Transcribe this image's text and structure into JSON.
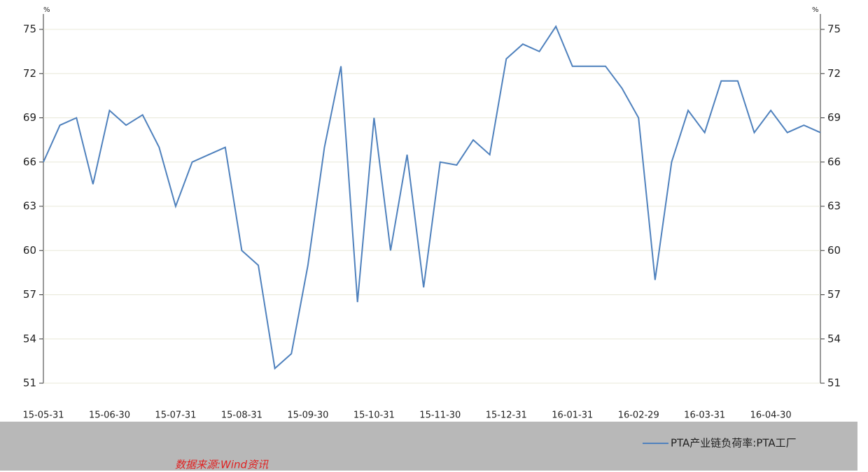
{
  "chart_data": {
    "type": "line",
    "y_unit": "%",
    "source": "数据来源:Wind资讯",
    "categories": [
      "15-05-31",
      null,
      null,
      null,
      "15-06-30",
      null,
      null,
      null,
      "15-07-31",
      null,
      null,
      null,
      "15-08-31",
      null,
      null,
      null,
      "15-09-30",
      null,
      null,
      null,
      "15-10-31",
      null,
      null,
      null,
      "15-11-30",
      null,
      null,
      null,
      "15-12-31",
      null,
      null,
      null,
      "16-01-31",
      null,
      null,
      null,
      "16-02-29",
      null,
      null,
      null,
      "16-03-31",
      null,
      null,
      null,
      "16-04-30",
      null,
      null,
      null
    ],
    "series": [
      {
        "name": "PTA产业链负荷率:PTA工厂",
        "color": "#4f81bd",
        "values": [
          66,
          68.5,
          69,
          64.5,
          69.5,
          68.5,
          69.2,
          67,
          63,
          66,
          66.5,
          67,
          60,
          59,
          52,
          53,
          59,
          67,
          72.5,
          56.5,
          69,
          60,
          66.5,
          57.5,
          66,
          65.8,
          67.5,
          66.5,
          73,
          74,
          73.5,
          75.2,
          72.5,
          72.5,
          72.5,
          71,
          69,
          58,
          66,
          69.5,
          68,
          71.5,
          71.5,
          68,
          69.5,
          68,
          68.5,
          68
        ]
      }
    ],
    "ylim": [
      51,
      75
    ],
    "yticks": [
      51,
      54,
      57,
      60,
      63,
      66,
      69,
      72,
      75
    ],
    "grid": true,
    "legend": "bottom-right"
  }
}
